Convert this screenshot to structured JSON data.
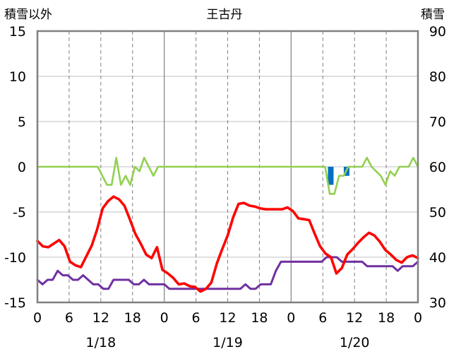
{
  "chart_data": {
    "type": "line",
    "title": "王古丹",
    "left_axis_label": "積雪以外",
    "right_axis_label": "積雪",
    "left_ylim": [
      -15,
      15
    ],
    "left_ticks": [
      "15",
      "10",
      "5",
      "0",
      "-5",
      "-10",
      "-15"
    ],
    "right_ylim": [
      30,
      90
    ],
    "right_ticks": [
      "90",
      "80",
      "70",
      "60",
      "50",
      "40",
      "30"
    ],
    "x_hour_ticks": [
      "0",
      "6",
      "12",
      "18",
      "0",
      "6",
      "12",
      "18",
      "0",
      "6",
      "12",
      "18",
      "0"
    ],
    "date_labels": [
      {
        "label": "1/18",
        "hour": 12
      },
      {
        "label": "1/19",
        "hour": 36
      },
      {
        "label": "1/20",
        "hour": 60
      }
    ],
    "x_range_hours": [
      0,
      72
    ],
    "grid": true,
    "series": [
      {
        "key": "temperature",
        "color": "#ff0000",
        "axis": "left",
        "values": [
          -8.2,
          -8.8,
          -8.9,
          -8.5,
          -8.1,
          -8.8,
          -10.5,
          -10.9,
          -11.1,
          -9.9,
          -8.7,
          -6.9,
          -4.6,
          -3.8,
          -3.3,
          -3.6,
          -4.3,
          -5.8,
          -7.4,
          -8.5,
          -9.7,
          -10.1,
          -8.9,
          -11.4,
          -11.8,
          -12.3,
          -13.0,
          -12.9,
          -13.2,
          -13.3,
          -13.8,
          -13.5,
          -12.8,
          -10.7,
          -9.1,
          -7.6,
          -5.6,
          -4.1,
          -4.0,
          -4.3,
          -4.4,
          -4.6,
          -4.7,
          -4.7,
          -4.7,
          -4.7,
          -4.5,
          -4.9,
          -5.7,
          -5.8,
          -5.9,
          -7.4,
          -8.8,
          -9.6,
          -10.0,
          -11.8,
          -11.2,
          -9.7,
          -9.1,
          -8.4,
          -7.8,
          -7.3,
          -7.6,
          -8.3,
          -9.2,
          -9.7,
          -10.3,
          -10.6,
          -10.0,
          -9.8,
          -10.1
        ]
      },
      {
        "key": "secondary",
        "color": "#7030a0",
        "axis": "left",
        "values": [
          -12.5,
          -13.0,
          -12.5,
          -12.5,
          -11.5,
          -12.0,
          -12.0,
          -12.5,
          -12.5,
          -12.0,
          -12.5,
          -13.0,
          -13.0,
          -13.5,
          -13.5,
          -12.5,
          -12.5,
          -12.5,
          -12.5,
          -13.0,
          -13.0,
          -12.5,
          -13.0,
          -13.0,
          -13.0,
          -13.0,
          -13.5,
          -13.5,
          -13.5,
          -13.5,
          -13.5,
          -13.5,
          -13.5,
          -13.5,
          -13.5,
          -13.5,
          -13.5,
          -13.5,
          -13.5,
          -13.5,
          -13.5,
          -13.0,
          -13.5,
          -13.5,
          -13.0,
          -13.0,
          -13.0,
          -11.5,
          -10.5,
          -10.5,
          -10.5,
          -10.5,
          -10.5,
          -10.5,
          -10.5,
          -10.5,
          -10.5,
          -10.0,
          -10.0,
          -10.0,
          -10.5,
          -10.5,
          -10.5,
          -10.5,
          -10.5,
          -11.0,
          -11.0,
          -11.0,
          -11.0,
          -11.0,
          -11.0,
          -11.5,
          -11.0,
          -11.0,
          -11.0,
          -10.5
        ]
      },
      {
        "key": "green",
        "color": "#92d050",
        "axis": "left",
        "values": [
          0,
          0,
          0,
          0,
          0,
          0,
          0,
          0,
          0,
          0,
          0,
          0,
          0,
          0,
          -1.0,
          -2.0,
          -2.0,
          1.0,
          -2.0,
          -1.0,
          -2.0,
          0,
          -0.5,
          1.0,
          0,
          -1.0,
          0,
          0,
          0,
          0,
          0,
          0,
          0,
          0,
          0,
          0,
          0,
          0,
          0,
          0,
          0,
          0,
          0,
          0,
          0,
          0,
          0,
          0,
          0,
          0,
          0,
          0,
          0,
          0,
          0,
          0,
          0,
          0,
          0,
          0,
          0,
          0,
          0,
          -3.0,
          -3.0,
          -1.0,
          -1.0,
          0,
          0,
          0,
          0,
          1.0,
          0,
          -0.5,
          -1.0,
          -2.0,
          -0.5,
          -1.0,
          0,
          0,
          0,
          1.0,
          0
        ]
      }
    ],
    "bars": {
      "color": "#0070c0",
      "axis": "left",
      "x_hours": [
        55.5,
        58.5
      ],
      "values": [
        -2.0,
        -1.0
      ]
    }
  }
}
